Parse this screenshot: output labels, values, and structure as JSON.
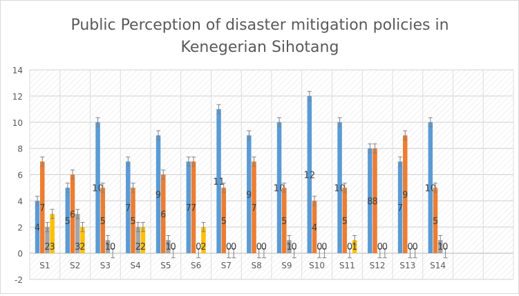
{
  "chart_data": {
    "type": "bar",
    "title": "Public Perception of disaster mitigation policies in Kenegerian Sihotang",
    "title_lines": [
      "Public Perception of disaster mitigation policies in",
      "Kenegerian Sihotang"
    ],
    "xlabel": "",
    "ylabel": "",
    "ylim": [
      -2,
      14
    ],
    "yticks": [
      -2,
      0,
      2,
      4,
      6,
      8,
      10,
      12,
      14
    ],
    "grid": true,
    "legend": "none",
    "error_bars": true,
    "background_pattern": "diagonal-hatch",
    "categories": [
      "S1",
      "S2",
      "S3",
      "S4",
      "S5",
      "S6",
      "S7",
      "S8",
      "S9",
      "S10",
      "S11",
      "S12",
      "S13",
      "S14"
    ],
    "series": [
      {
        "color": "#5b9bd5",
        "values": [
          4,
          5,
          10,
          7,
          9,
          7,
          11,
          9,
          10,
          12,
          10,
          8,
          7,
          10
        ]
      },
      {
        "color": "#ed7d31",
        "values": [
          7,
          6,
          5,
          5,
          6,
          7,
          5,
          7,
          5,
          4,
          5,
          8,
          9,
          5
        ]
      },
      {
        "color": "#a5a5a5",
        "values": [
          2,
          3,
          1,
          2,
          1,
          0,
          0,
          0,
          1,
          0,
          0,
          0,
          0,
          1
        ]
      },
      {
        "color": "#ffc000",
        "values": [
          3,
          2,
          0,
          2,
          0,
          2,
          0,
          0,
          0,
          0,
          1,
          0,
          0,
          0
        ]
      }
    ]
  }
}
